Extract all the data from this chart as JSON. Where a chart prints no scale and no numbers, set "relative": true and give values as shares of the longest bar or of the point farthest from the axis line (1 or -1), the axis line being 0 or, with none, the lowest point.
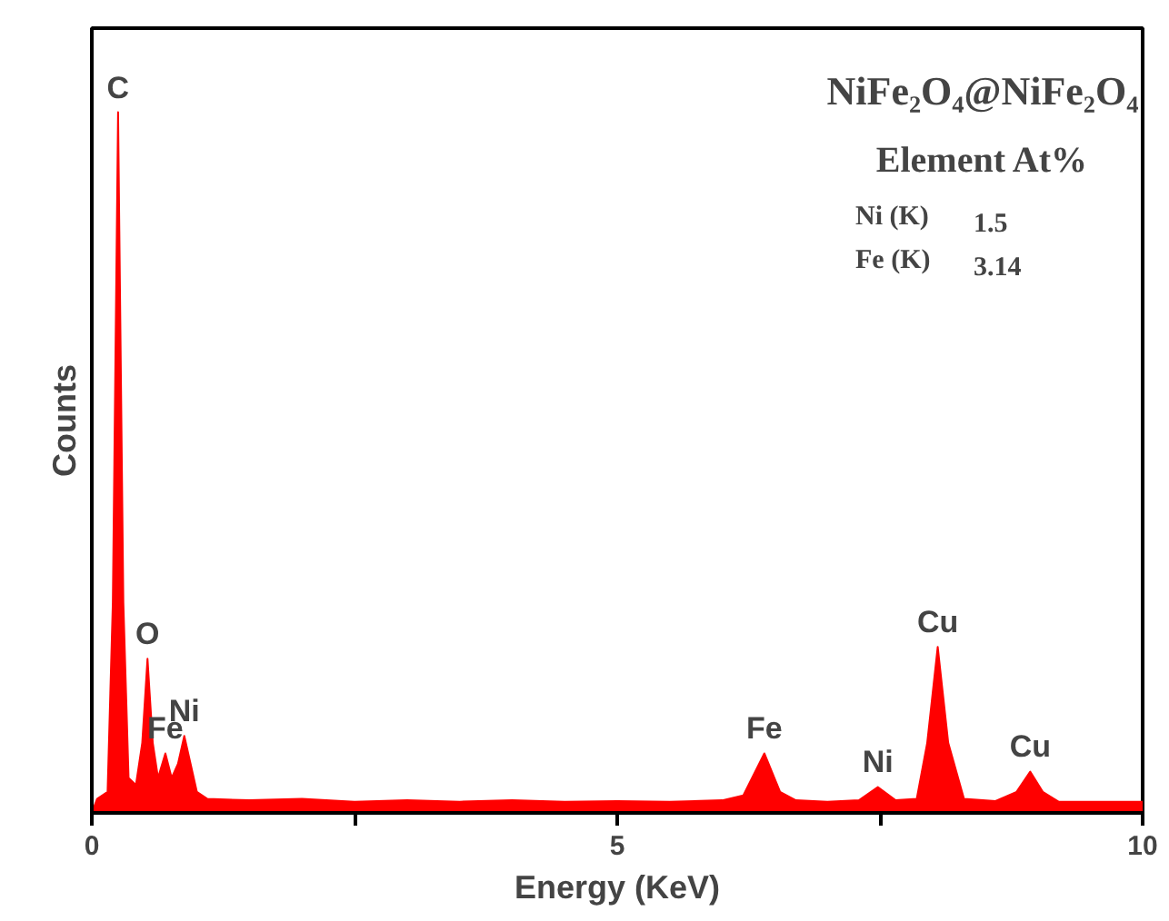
{
  "chart_data": {
    "type": "area",
    "title": "NiFe₂O₄@NiFe₂O₄",
    "xlabel": "Energy (KeV)",
    "ylabel": "Counts",
    "relative": true,
    "grid": false,
    "xlim": [
      0,
      10
    ],
    "xticks": [
      0,
      {
        "value": 2.5,
        "label": null
      },
      5,
      {
        "value": 7.5,
        "label": null
      },
      10
    ],
    "x": [
      0.0,
      0.05,
      0.15,
      0.2,
      0.25,
      0.3,
      0.35,
      0.42,
      0.48,
      0.53,
      0.58,
      0.63,
      0.7,
      0.76,
      0.82,
      0.88,
      0.94,
      1.0,
      1.1,
      1.5,
      2.0,
      2.5,
      3.0,
      3.5,
      4.0,
      4.5,
      5.0,
      5.5,
      6.0,
      6.2,
      6.4,
      6.55,
      6.7,
      7.0,
      7.3,
      7.48,
      7.65,
      7.85,
      7.95,
      8.05,
      8.15,
      8.3,
      8.6,
      8.8,
      8.93,
      9.05,
      9.2,
      9.6,
      10.0
    ],
    "series": [
      {
        "color": "#ff0000",
        "values": [
          0.0,
          0.02,
          0.03,
          0.3,
          1.0,
          0.3,
          0.05,
          0.04,
          0.1,
          0.22,
          0.1,
          0.05,
          0.085,
          0.05,
          0.07,
          0.11,
          0.07,
          0.03,
          0.02,
          0.018,
          0.02,
          0.016,
          0.018,
          0.016,
          0.018,
          0.016,
          0.017,
          0.016,
          0.018,
          0.025,
          0.085,
          0.03,
          0.018,
          0.016,
          0.018,
          0.037,
          0.018,
          0.02,
          0.1,
          0.237,
          0.1,
          0.02,
          0.017,
          0.03,
          0.059,
          0.03,
          0.016,
          0.016,
          0.016
        ]
      }
    ],
    "annotations": [
      {
        "text": "C",
        "x": 0.25,
        "y": 1.0
      },
      {
        "text": "O",
        "x": 0.53,
        "y": 0.22
      },
      {
        "text": "Fe",
        "x": 0.7,
        "y": 0.085
      },
      {
        "text": "Ni",
        "x": 0.88,
        "y": 0.11
      },
      {
        "text": "Fe",
        "x": 6.4,
        "y": 0.085
      },
      {
        "text": "Ni",
        "x": 7.48,
        "y": 0.037
      },
      {
        "text": "Cu",
        "x": 8.05,
        "y": 0.237
      },
      {
        "text": "Cu",
        "x": 8.93,
        "y": 0.059
      },
      "Element At%",
      "Ni (K)",
      "1.5",
      "Fe (K)",
      "3.14"
    ]
  }
}
